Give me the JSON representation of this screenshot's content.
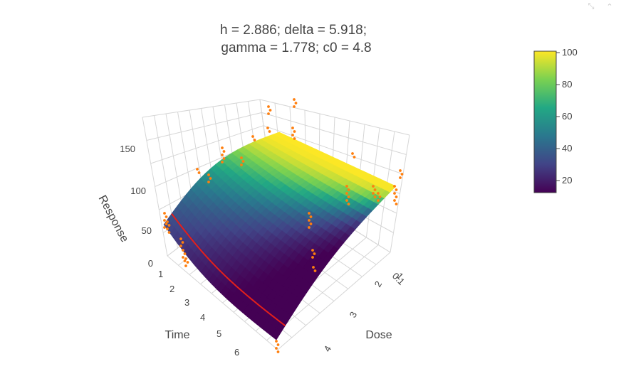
{
  "toolbar": {
    "autoscale_icon": "autoscale-icon",
    "collapse_icon": "chevron-up-icon"
  },
  "chart_data": {
    "type": "surface3d",
    "title_lines": [
      "h = 2.886; delta = 5.918;",
      "gamma = 1.778; c0 = 4.8"
    ],
    "axes": {
      "x": {
        "label": "Time",
        "ticks": [
          "1",
          "2",
          "3",
          "4",
          "5",
          "6"
        ],
        "range": [
          1,
          6
        ]
      },
      "y": {
        "label": "Dose",
        "ticks": [
          "0.1",
          "1",
          "2",
          "3",
          "4"
        ]
      },
      "z": {
        "label": "Response",
        "ticks": [
          "0",
          "50",
          "100",
          "150"
        ],
        "range": [
          0,
          180
        ]
      }
    },
    "colorbar": {
      "colorscale": "viridis",
      "range": [
        10,
        100
      ],
      "ticks": [
        "20",
        "40",
        "60",
        "80",
        "100"
      ],
      "colors": [
        "#440154",
        "#414487",
        "#2a788e",
        "#22a884",
        "#7ad151",
        "#fde725"
      ]
    },
    "surface": {
      "description_values": {
        "max_response": 100,
        "min_response": 5
      }
    },
    "curve_color": "#e3201b",
    "points_color": "#ff7f0e",
    "grid": true
  }
}
